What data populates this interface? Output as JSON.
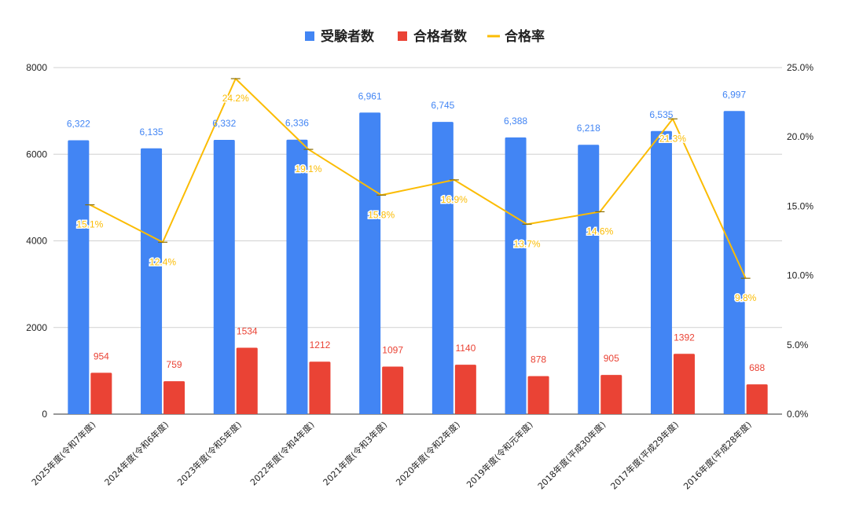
{
  "chart_data": {
    "type": "bar",
    "categories": [
      "2025年度(令和7年度)",
      "2024年度(令和6年度)",
      "2023年度(令和5年度)",
      "2022年度(令和4年度)",
      "2021年度(令和3年度)",
      "2020年度(令和2年度)",
      "2019年度(令和元年度)",
      "2018年度(平成30年度)",
      "2017年度(平成29年度)",
      "2016年度(平成28年度)"
    ],
    "series": [
      {
        "name": "受験者数",
        "type": "bar",
        "axis": "left",
        "color": "#4285f4",
        "values": [
          6322,
          6135,
          6332,
          6336,
          6961,
          6745,
          6388,
          6218,
          6535,
          6997
        ],
        "labels": [
          "6,322",
          "6,135",
          "6,332",
          "6,336",
          "6,961",
          "6,745",
          "6,388",
          "6,218",
          "6,535",
          "6,997"
        ]
      },
      {
        "name": "合格者数",
        "type": "bar",
        "axis": "left",
        "color": "#ea4335",
        "values": [
          954,
          759,
          1534,
          1212,
          1097,
          1140,
          878,
          905,
          1392,
          688
        ],
        "labels": [
          "954",
          "759",
          "1534",
          "1212",
          "1097",
          "1140",
          "878",
          "905",
          "1392",
          "688"
        ]
      },
      {
        "name": "合格率",
        "type": "line",
        "axis": "right",
        "color": "#fbbc04",
        "values": [
          15.1,
          12.4,
          24.2,
          19.1,
          15.8,
          16.9,
          13.7,
          14.6,
          21.3,
          9.8
        ],
        "labels": [
          "15.1%",
          "12.4%",
          "24.2%",
          "19.1%",
          "15.8%",
          "16.9%",
          "13.7%",
          "14.6%",
          "21.3%",
          "9.8%"
        ]
      }
    ],
    "ylim": [
      0,
      8000
    ],
    "yticks": [
      0,
      2000,
      4000,
      6000,
      8000
    ],
    "ytick_labels": [
      "0",
      "2000",
      "4000",
      "6000",
      "8000"
    ],
    "y2lim": [
      0,
      25
    ],
    "y2ticks": [
      0,
      5,
      10,
      15,
      20,
      25
    ],
    "y2tick_labels": [
      "0.0%",
      "5.0%",
      "10.0%",
      "15.0%",
      "20.0%",
      "25.0%"
    ],
    "grid": true,
    "legend": "top-center"
  }
}
